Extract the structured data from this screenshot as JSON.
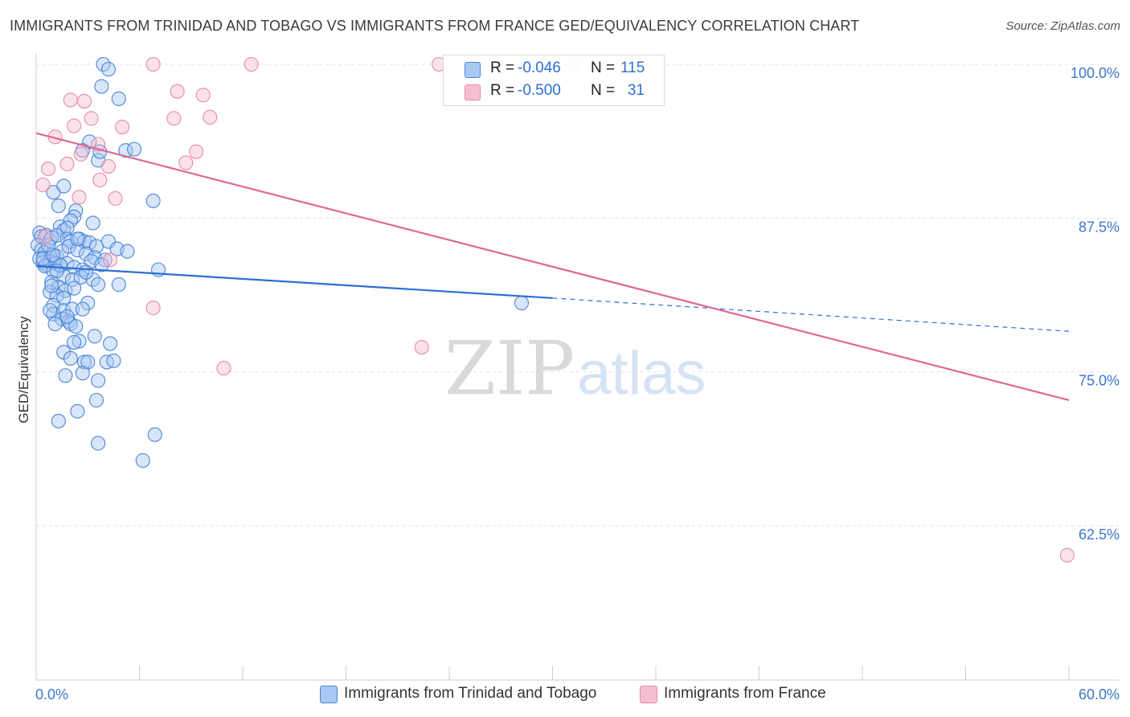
{
  "header": {
    "title": "IMMIGRANTS FROM TRINIDAD AND TOBAGO VS IMMIGRANTS FROM FRANCE GED/EQUIVALENCY CORRELATION CHART",
    "source": "Source: ZipAtlas.com"
  },
  "legend": {
    "rows": [
      {
        "r_label": "R =",
        "r_value": "-0.046",
        "n_label": "N =",
        "n_value": "115"
      },
      {
        "r_label": "R =",
        "r_value": "-0.500",
        "n_label": "N =",
        "n_value": "31"
      }
    ]
  },
  "bottom_legend": {
    "series1": "Immigrants from Trinidad and Tobago",
    "series2": "Immigrants from France"
  },
  "watermark": {
    "zip": "ZIP",
    "atlas": "atlas"
  },
  "colors": {
    "blue_fill": "#a9c8f2",
    "blue_stroke": "#4a86d8",
    "blue_line": "#2d6fd3",
    "pink_fill": "#f6bfd0",
    "pink_stroke": "#e68aa8",
    "pink_line": "#e0688f",
    "tick_label": "#3f76c9"
  },
  "chart_data": {
    "type": "scatter",
    "title": "IMMIGRANTS FROM TRINIDAD AND TOBAGO VS IMMIGRANTS FROM FRANCE GED/EQUIVALENCY CORRELATION CHART",
    "xlabel": "",
    "ylabel": "GED/Equivalency",
    "xlim": [
      0,
      60
    ],
    "ylim": [
      50,
      101
    ],
    "x_tick_labels": [
      "0.0%",
      "60.0%"
    ],
    "y_ticks": [
      62.5,
      75.0,
      87.5,
      100.0
    ],
    "y_tick_labels": [
      "62.5%",
      "75.0%",
      "87.5%",
      "100.0%"
    ],
    "grid": true,
    "legend_position": "top-center",
    "series": [
      {
        "name": "Immigrants from Trinidad and Tobago",
        "color": "#a9c8f2",
        "trend": {
          "x_start": 0,
          "y_start": 83.6,
          "x_solid_end": 30,
          "y_solid_end": 81.0,
          "x_end": 60,
          "y_end": 78.3
        },
        "points": [
          [
            3.9,
            100.0
          ],
          [
            4.2,
            99.6
          ],
          [
            3.8,
            98.2
          ],
          [
            4.8,
            97.2
          ],
          [
            3.1,
            93.7
          ],
          [
            2.7,
            93.0
          ],
          [
            5.2,
            93.0
          ],
          [
            5.7,
            93.1
          ],
          [
            3.6,
            92.2
          ],
          [
            3.7,
            92.9
          ],
          [
            1.0,
            89.6
          ],
          [
            1.6,
            90.1
          ],
          [
            6.8,
            88.9
          ],
          [
            1.3,
            88.5
          ],
          [
            2.3,
            88.1
          ],
          [
            2.2,
            87.6
          ],
          [
            2.0,
            87.3
          ],
          [
            3.3,
            87.1
          ],
          [
            1.4,
            86.8
          ],
          [
            1.6,
            86.5
          ],
          [
            1.8,
            86.7
          ],
          [
            0.2,
            86.3
          ],
          [
            0.3,
            86.0
          ],
          [
            0.6,
            86.1
          ],
          [
            0.8,
            85.7
          ],
          [
            0.9,
            85.9
          ],
          [
            1.2,
            86.1
          ],
          [
            1.8,
            85.8
          ],
          [
            2.0,
            85.6
          ],
          [
            2.5,
            85.8
          ],
          [
            2.8,
            85.6
          ],
          [
            3.1,
            85.5
          ],
          [
            3.5,
            85.2
          ],
          [
            4.2,
            85.6
          ],
          [
            4.7,
            85.0
          ],
          [
            5.3,
            84.8
          ],
          [
            0.1,
            85.3
          ],
          [
            0.3,
            84.9
          ],
          [
            0.5,
            84.7
          ],
          [
            0.9,
            84.5
          ],
          [
            1.2,
            84.4
          ],
          [
            1.5,
            84.8
          ],
          [
            1.9,
            85.2
          ],
          [
            2.4,
            84.9
          ],
          [
            2.9,
            84.6
          ],
          [
            3.4,
            84.3
          ],
          [
            4.0,
            84.1
          ],
          [
            0.2,
            84.2
          ],
          [
            0.4,
            83.9
          ],
          [
            0.6,
            83.7
          ],
          [
            0.8,
            84.0
          ],
          [
            1.1,
            83.8
          ],
          [
            1.4,
            83.6
          ],
          [
            1.8,
            83.8
          ],
          [
            2.2,
            83.5
          ],
          [
            2.7,
            83.3
          ],
          [
            3.2,
            84.0
          ],
          [
            3.8,
            83.7
          ],
          [
            7.1,
            83.3
          ],
          [
            0.5,
            83.6
          ],
          [
            1.0,
            83.2
          ],
          [
            1.6,
            82.8
          ],
          [
            2.1,
            82.5
          ],
          [
            2.6,
            82.7
          ],
          [
            3.3,
            82.5
          ],
          [
            0.9,
            82.3
          ],
          [
            1.3,
            81.9
          ],
          [
            1.7,
            81.6
          ],
          [
            2.2,
            81.8
          ],
          [
            0.8,
            81.5
          ],
          [
            1.2,
            81.2
          ],
          [
            1.6,
            81.0
          ],
          [
            0.9,
            82.0
          ],
          [
            3.6,
            82.1
          ],
          [
            4.8,
            82.1
          ],
          [
            3.0,
            80.6
          ],
          [
            1.0,
            80.4
          ],
          [
            1.6,
            80.0
          ],
          [
            2.1,
            80.1
          ],
          [
            2.7,
            80.1
          ],
          [
            1.0,
            79.7
          ],
          [
            1.5,
            79.3
          ],
          [
            1.9,
            79.1
          ],
          [
            2.0,
            78.9
          ],
          [
            2.3,
            78.7
          ],
          [
            1.1,
            78.9
          ],
          [
            3.4,
            77.9
          ],
          [
            2.5,
            77.5
          ],
          [
            2.2,
            77.4
          ],
          [
            4.3,
            77.3
          ],
          [
            1.6,
            76.6
          ],
          [
            2.0,
            76.1
          ],
          [
            2.8,
            75.8
          ],
          [
            3.0,
            75.8
          ],
          [
            4.1,
            75.8
          ],
          [
            4.5,
            75.9
          ],
          [
            1.7,
            74.7
          ],
          [
            2.7,
            74.9
          ],
          [
            3.6,
            74.3
          ],
          [
            3.5,
            72.7
          ],
          [
            2.4,
            71.8
          ],
          [
            1.3,
            71.0
          ],
          [
            6.9,
            69.9
          ],
          [
            3.6,
            69.2
          ],
          [
            6.2,
            67.8
          ],
          [
            28.2,
            80.6
          ],
          [
            0.4,
            84.2
          ],
          [
            1.4,
            83.7
          ],
          [
            1.0,
            84.5
          ],
          [
            2.9,
            83.1
          ],
          [
            0.7,
            85.3
          ],
          [
            1.2,
            83.2
          ],
          [
            0.8,
            80.0
          ],
          [
            2.4,
            85.8
          ],
          [
            1.8,
            79.5
          ]
        ]
      },
      {
        "name": "Immigrants from France",
        "color": "#f6bfd0",
        "trend": {
          "x_start": 0,
          "y_start": 94.4,
          "x_end": 60,
          "y_end": 72.7
        },
        "points": [
          [
            6.8,
            100.0
          ],
          [
            12.5,
            100.0
          ],
          [
            23.4,
            100.0
          ],
          [
            31.2,
            100.0
          ],
          [
            8.2,
            97.8
          ],
          [
            9.7,
            97.5
          ],
          [
            10.1,
            95.7
          ],
          [
            2.0,
            97.1
          ],
          [
            2.8,
            97.0
          ],
          [
            3.2,
            95.6
          ],
          [
            5.0,
            94.9
          ],
          [
            2.2,
            95.0
          ],
          [
            8.0,
            95.6
          ],
          [
            3.6,
            93.5
          ],
          [
            1.1,
            94.1
          ],
          [
            9.3,
            92.9
          ],
          [
            2.6,
            92.7
          ],
          [
            1.8,
            91.9
          ],
          [
            8.7,
            92.0
          ],
          [
            4.2,
            91.7
          ],
          [
            0.7,
            91.5
          ],
          [
            3.7,
            90.6
          ],
          [
            0.4,
            90.2
          ],
          [
            4.6,
            89.1
          ],
          [
            2.5,
            89.2
          ],
          [
            0.5,
            86.0
          ],
          [
            4.3,
            84.1
          ],
          [
            6.8,
            80.2
          ],
          [
            10.9,
            75.3
          ],
          [
            22.4,
            77.0
          ],
          [
            59.9,
            60.1
          ]
        ]
      }
    ]
  }
}
